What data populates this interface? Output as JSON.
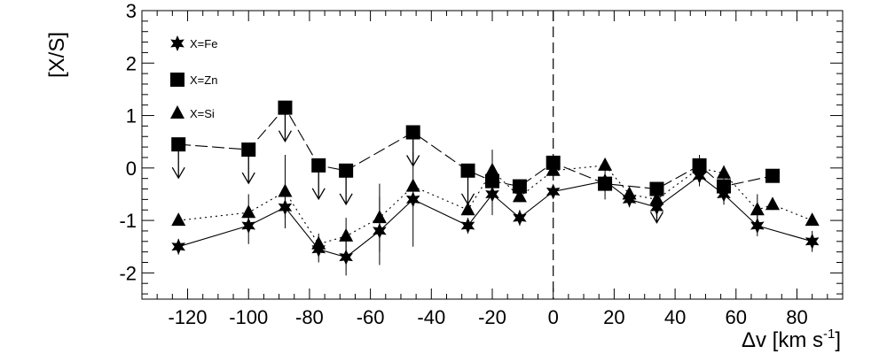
{
  "chart_data": {
    "type": "scatter",
    "xlabel": "Δv [km s",
    "xlabel_sup": "-1",
    "xlabel_close": "]",
    "ylabel": "[X/S]",
    "xlim": [
      -135,
      95
    ],
    "ylim": [
      -2.5,
      3
    ],
    "xticks": [
      -120,
      -100,
      -80,
      -60,
      -40,
      -20,
      0,
      20,
      40,
      60,
      80
    ],
    "yticks": [
      -2,
      -1,
      0,
      1,
      2,
      3
    ],
    "vline_x": 0,
    "legend_position": "top-left",
    "series": [
      {
        "name": "X=Fe",
        "marker": "star",
        "line_style": "solid",
        "points": [
          {
            "x": -123,
            "y": -1.5,
            "yerr": 0.15
          },
          {
            "x": -100,
            "y": -1.1,
            "yerr": 0.35
          },
          {
            "x": -88,
            "y": -0.75,
            "yerr": 0.2
          },
          {
            "x": -77,
            "y": -1.55,
            "yerr": 0.25
          },
          {
            "x": -68,
            "y": -1.7,
            "yerr": 0.35
          },
          {
            "x": -57,
            "y": -1.2,
            "yerr": 0.65
          },
          {
            "x": -46,
            "y": -0.6,
            "yerr": 0.9
          },
          {
            "x": -28,
            "y": -1.1,
            "yerr": 0.15
          },
          {
            "x": -20,
            "y": -0.5,
            "yerr": 0.4
          },
          {
            "x": -11,
            "y": -0.95,
            "yerr": 0.15
          },
          {
            "x": 0,
            "y": -0.45,
            "yerr": 0.1
          },
          {
            "x": 17,
            "y": -0.25,
            "yerr": 0.35
          },
          {
            "x": 25,
            "y": -0.6,
            "yerr": 0.15
          },
          {
            "x": 34,
            "y": -0.75,
            "yerr": 0.15
          },
          {
            "x": 48,
            "y": -0.15,
            "yerr": 0.2
          },
          {
            "x": 56,
            "y": -0.5,
            "yerr": 0.2
          },
          {
            "x": 67,
            "y": -1.1,
            "yerr": 0.2
          },
          {
            "x": 85,
            "y": -1.4,
            "yerr": 0.2
          }
        ]
      },
      {
        "name": "X=Zn",
        "marker": "square",
        "line_style": "dashed",
        "points": [
          {
            "x": -123,
            "y": 0.45,
            "upper_limit": true
          },
          {
            "x": -100,
            "y": 0.35,
            "upper_limit": true
          },
          {
            "x": -88,
            "y": 1.15,
            "upper_limit": true
          },
          {
            "x": -77,
            "y": 0.05,
            "upper_limit": true
          },
          {
            "x": -68,
            "y": -0.05,
            "upper_limit": true
          },
          {
            "x": -46,
            "y": 0.68,
            "upper_limit": true
          },
          {
            "x": -28,
            "y": -0.05,
            "upper_limit": true
          },
          {
            "x": -20,
            "y": -0.25
          },
          {
            "x": -11,
            "y": -0.35
          },
          {
            "x": 0,
            "y": 0.1
          },
          {
            "x": 17,
            "y": -0.3
          },
          {
            "x": 34,
            "y": -0.4,
            "upper_limit": true
          },
          {
            "x": 48,
            "y": 0.05
          },
          {
            "x": 56,
            "y": -0.35
          },
          {
            "x": 72,
            "y": -0.15
          }
        ]
      },
      {
        "name": "X=Si",
        "marker": "triangle",
        "line_style": "dotted",
        "points": [
          {
            "x": -123,
            "y": -1.0,
            "yerr": 0.1
          },
          {
            "x": -100,
            "y": -0.85,
            "yerr": 0.35
          },
          {
            "x": -88,
            "y": -0.45,
            "yerr": 0.7
          },
          {
            "x": -77,
            "y": -1.45,
            "yerr": 0.2
          },
          {
            "x": -68,
            "y": -1.3,
            "yerr": 0.35
          },
          {
            "x": -57,
            "y": -0.95,
            "yerr": 0.65
          },
          {
            "x": -46,
            "y": -0.35,
            "yerr": 0.1
          },
          {
            "x": -28,
            "y": -0.8,
            "yerr": 0.1
          },
          {
            "x": -20,
            "y": -0.05,
            "yerr": 0.4
          },
          {
            "x": -11,
            "y": -0.55,
            "yerr": 0.1
          },
          {
            "x": 0,
            "y": -0.05,
            "yerr": 0.1
          },
          {
            "x": 17,
            "y": 0.05,
            "yerr": 0.05
          },
          {
            "x": 25,
            "y": -0.5,
            "yerr": 0.1
          },
          {
            "x": 34,
            "y": -0.6,
            "yerr": 0.1
          },
          {
            "x": 48,
            "y": 0.0,
            "yerr": 0.25
          },
          {
            "x": 56,
            "y": -0.1,
            "yerr": 0.15
          },
          {
            "x": 67,
            "y": -0.8,
            "yerr": 0.3
          },
          {
            "x": 72,
            "y": -0.7,
            "yerr": 0.1
          },
          {
            "x": 85,
            "y": -1.0,
            "yerr": 0.1
          }
        ]
      }
    ]
  }
}
